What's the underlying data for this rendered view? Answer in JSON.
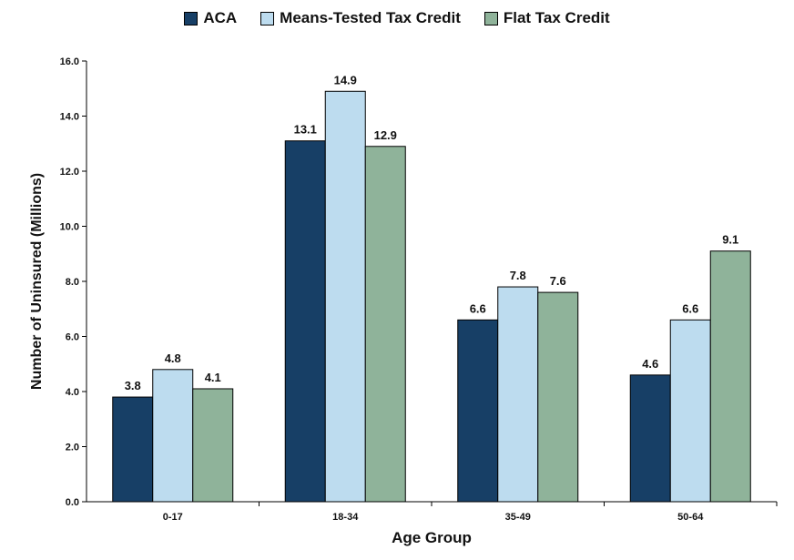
{
  "chart_data": {
    "type": "bar",
    "title": "",
    "xlabel": "Age Group",
    "ylabel": "Number of Uninsured (Millions)",
    "ylim": [
      0,
      16
    ],
    "yticks": [
      "0.0",
      "2.0",
      "4.0",
      "6.0",
      "8.0",
      "10.0",
      "12.0",
      "14.0",
      "16.0"
    ],
    "categories": [
      "0-17",
      "18-34",
      "35-49",
      "50-64"
    ],
    "series": [
      {
        "name": "ACA",
        "color": "#173f66",
        "values": [
          3.8,
          13.1,
          6.6,
          4.6
        ],
        "labels": [
          "3.8",
          "13.1",
          "6.6",
          "4.6"
        ]
      },
      {
        "name": "Means-Tested Tax Credit",
        "color": "#bddcef",
        "values": [
          4.8,
          14.9,
          7.8,
          6.6
        ],
        "labels": [
          "4.8",
          "14.9",
          "7.8",
          "6.6"
        ]
      },
      {
        "name": "Flat Tax Credit",
        "color": "#8fb39a",
        "values": [
          4.1,
          12.9,
          7.6,
          9.1
        ],
        "labels": [
          "4.1",
          "12.9",
          "7.6",
          "9.1"
        ]
      }
    ],
    "legend_position": "top-center",
    "grid": false
  }
}
